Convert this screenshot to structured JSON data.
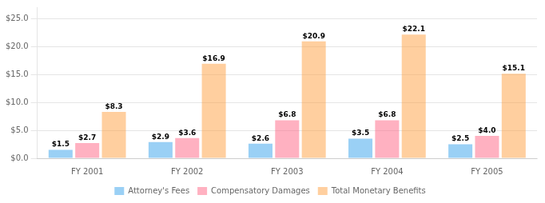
{
  "chart_data": {
    "type": "bar",
    "categories": [
      "FY 2001",
      "FY 2002",
      "FY 2003",
      "FY 2004",
      "FY 2005"
    ],
    "series": [
      {
        "name": "Attorney's Fees",
        "values": [
          1.5,
          2.9,
          2.6,
          3.5,
          2.5
        ],
        "value_labels": [
          "$1.5",
          "$2.9",
          "$2.6",
          "$3.5",
          "$2.5"
        ]
      },
      {
        "name": "Compensatory Damages",
        "values": [
          2.7,
          3.6,
          6.8,
          6.8,
          4.0
        ],
        "value_labels": [
          "$2.7",
          "$3.6",
          "$6.8",
          "$6.8",
          "$4.0"
        ]
      },
      {
        "name": "Total Monetary Benefits",
        "values": [
          8.3,
          16.9,
          20.9,
          22.1,
          15.1
        ],
        "value_labels": [
          "$8.3",
          "$16.9",
          "$20.9",
          "$22.1",
          "$15.1"
        ]
      }
    ],
    "ylim": [
      0,
      27
    ],
    "yticks": [
      {
        "value": 0,
        "label": "$0.0"
      },
      {
        "value": 5,
        "label": "$5.0"
      },
      {
        "value": 10,
        "label": "$10.0"
      },
      {
        "value": 15,
        "label": "$15.0"
      },
      {
        "value": 20,
        "label": "$20.0"
      },
      {
        "value": 25,
        "label": "$25.0"
      }
    ],
    "grid": true,
    "legend": "bottom",
    "data_labels": true
  }
}
